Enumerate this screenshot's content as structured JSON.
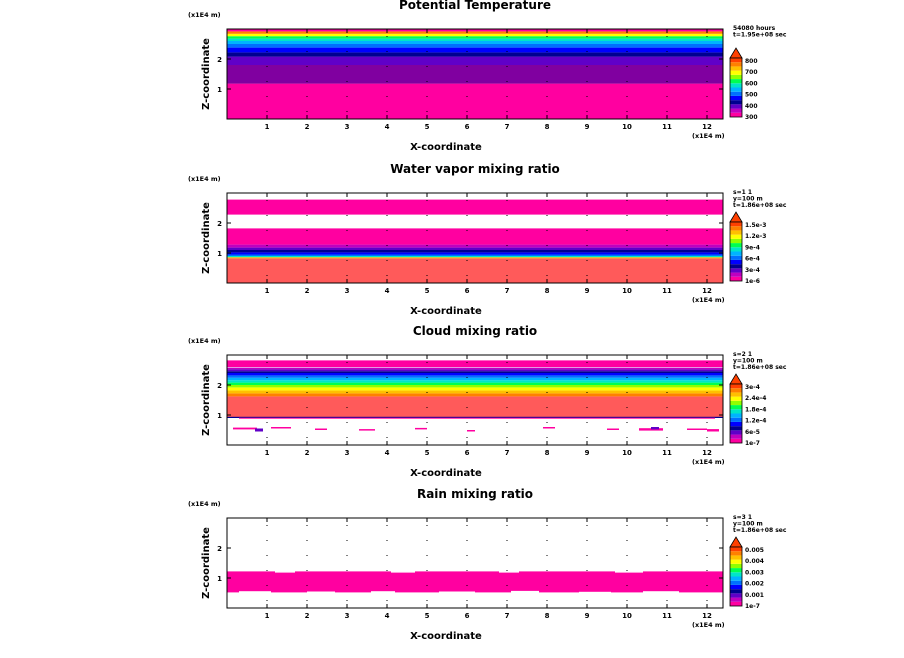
{
  "chart_data": [
    {
      "type": "heatmap",
      "title": "Potential Temperature",
      "xlabel": "X-coordinate",
      "ylabel": "Z-coordinate",
      "x_unit": "(x1E4 m)",
      "z_unit": "(x1E4 m)",
      "x_ticks": [
        "1",
        "2",
        "3",
        "4",
        "5",
        "6",
        "7",
        "8",
        "9",
        "10",
        "11",
        "12"
      ],
      "z_ticks": [
        "1",
        "2"
      ],
      "xlim": [
        0,
        12.4
      ],
      "zlim": [
        0,
        3.0
      ],
      "info": [
        "54080 hours",
        "t=1.95e+08 sec"
      ],
      "legend_labels": [
        "300",
        "400",
        "500",
        "600",
        "700",
        "800"
      ],
      "legend_colors": [
        "#ff00a0",
        "#c000c0",
        "#6000c8",
        "#000090",
        "#0000ff",
        "#0070ff",
        "#00b4ff",
        "#00e6c8",
        "#00ff50",
        "#90ff00",
        "#ffff00",
        "#ffc000",
        "#ff8000",
        "#ff4000"
      ],
      "bands": [
        {
          "z0": 0.0,
          "z1": 1.18,
          "color": "#ff00a0"
        },
        {
          "z0": 1.18,
          "z1": 1.8,
          "color": "#8000a0"
        },
        {
          "z0": 1.8,
          "z1": 2.08,
          "color": "#6000c8"
        },
        {
          "z0": 2.08,
          "z1": 2.22,
          "color": "#000090"
        },
        {
          "z0": 2.22,
          "z1": 2.38,
          "color": "#0000ff"
        },
        {
          "z0": 2.38,
          "z1": 2.5,
          "color": "#0070ff"
        },
        {
          "z0": 2.5,
          "z1": 2.6,
          "color": "#00b4ff"
        },
        {
          "z0": 2.6,
          "z1": 2.68,
          "color": "#00e6c8"
        },
        {
          "z0": 2.68,
          "z1": 2.76,
          "color": "#00ff50"
        },
        {
          "z0": 2.76,
          "z1": 2.84,
          "color": "#ffff00"
        },
        {
          "z0": 2.84,
          "z1": 2.92,
          "color": "#ff8000"
        },
        {
          "z0": 2.92,
          "z1": 3.0,
          "color": "#ff00a0"
        }
      ],
      "speckle": []
    },
    {
      "type": "heatmap",
      "title": "Water vapor mixing ratio",
      "xlabel": "X-coordinate",
      "ylabel": "Z-coordinate",
      "x_unit": "(x1E4 m)",
      "z_unit": "(x1E4 m)",
      "x_ticks": [
        "1",
        "2",
        "3",
        "4",
        "5",
        "6",
        "7",
        "8",
        "9",
        "10",
        "11",
        "12"
      ],
      "z_ticks": [
        "1",
        "2"
      ],
      "xlim": [
        0,
        12.4
      ],
      "zlim": [
        0,
        3.0
      ],
      "info": [
        "s=1 1",
        "y=100 m",
        "t=1.86e+08 sec"
      ],
      "legend_labels": [
        "1e-6",
        "3e-4",
        "6e-4",
        "9e-4",
        "1.2e-3",
        "1.5e-3"
      ],
      "legend_colors": [
        "#ff00a0",
        "#c000c0",
        "#6000c8",
        "#000090",
        "#0000ff",
        "#0070ff",
        "#00b4ff",
        "#00e6c8",
        "#00ff50",
        "#90ff00",
        "#ffff00",
        "#ffc000",
        "#ff8000",
        "#ff4000"
      ],
      "bands": [
        {
          "z0": 0.0,
          "z1": 0.82,
          "color": "#ff5a5a"
        },
        {
          "z0": 0.82,
          "z1": 0.86,
          "color": "#ffb400"
        },
        {
          "z0": 0.86,
          "z1": 0.9,
          "color": "#00e6c8"
        },
        {
          "z0": 0.9,
          "z1": 0.95,
          "color": "#0070ff"
        },
        {
          "z0": 0.95,
          "z1": 1.02,
          "color": "#0000ff"
        },
        {
          "z0": 1.02,
          "z1": 1.1,
          "color": "#000090"
        },
        {
          "z0": 1.1,
          "z1": 1.18,
          "color": "#6000c8"
        },
        {
          "z0": 1.18,
          "z1": 1.28,
          "color": "#c000c0"
        },
        {
          "z0": 1.28,
          "z1": 1.82,
          "color": "#ff00a0"
        },
        {
          "z0": 2.28,
          "z1": 2.78,
          "color": "#ff00a0"
        }
      ],
      "speckle": []
    },
    {
      "type": "heatmap",
      "title": "Cloud mixing ratio",
      "xlabel": "X-coordinate",
      "ylabel": "Z-coordinate",
      "x_unit": "(x1E4 m)",
      "z_unit": "(x1E4 m)",
      "x_ticks": [
        "1",
        "2",
        "3",
        "4",
        "5",
        "6",
        "7",
        "8",
        "9",
        "10",
        "11",
        "12"
      ],
      "z_ticks": [
        "1",
        "2"
      ],
      "xlim": [
        0,
        12.4
      ],
      "zlim": [
        0,
        3.0
      ],
      "info": [
        "s=2 1",
        "y=100 m",
        "t=1.86e+08 sec"
      ],
      "legend_labels": [
        "1e-7",
        "6e-5",
        "1.2e-4",
        "1.8e-4",
        "2.4e-4",
        "3e-4"
      ],
      "legend_colors": [
        "#ff00a0",
        "#c000c0",
        "#6000c8",
        "#000090",
        "#0000ff",
        "#0070ff",
        "#00b4ff",
        "#00e6c8",
        "#00ff50",
        "#90ff00",
        "#ffff00",
        "#ffc000",
        "#ff8000",
        "#ff4000"
      ],
      "bands": [
        {
          "z0": 0.92,
          "z1": 1.62,
          "color": "#ff5a5a"
        },
        {
          "z0": 1.62,
          "z1": 1.72,
          "color": "#ff8000"
        },
        {
          "z0": 1.72,
          "z1": 1.82,
          "color": "#ffc000"
        },
        {
          "z0": 1.82,
          "z1": 1.92,
          "color": "#ffff00"
        },
        {
          "z0": 1.92,
          "z1": 2.0,
          "color": "#90ff00"
        },
        {
          "z0": 2.0,
          "z1": 2.08,
          "color": "#00ff50"
        },
        {
          "z0": 2.08,
          "z1": 2.16,
          "color": "#00e6c8"
        },
        {
          "z0": 2.16,
          "z1": 2.24,
          "color": "#00b4ff"
        },
        {
          "z0": 2.24,
          "z1": 2.32,
          "color": "#0070ff"
        },
        {
          "z0": 2.32,
          "z1": 2.4,
          "color": "#0000ff"
        },
        {
          "z0": 2.4,
          "z1": 2.46,
          "color": "#000090"
        },
        {
          "z0": 2.46,
          "z1": 2.52,
          "color": "#6000c8"
        },
        {
          "z0": 2.52,
          "z1": 2.58,
          "color": "#c000c0"
        },
        {
          "z0": 2.6,
          "z1": 2.82,
          "color": "#ff00a0"
        },
        {
          "z0": 0.9,
          "z1": 0.94,
          "color": "#000090"
        }
      ],
      "speckle": [
        {
          "x": 0.15,
          "z": 0.52,
          "w": 0.6,
          "h": 0.06,
          "color": "#ff00a0"
        },
        {
          "x": 0.7,
          "z": 0.45,
          "w": 0.2,
          "h": 0.1,
          "color": "#6000c8"
        },
        {
          "x": 1.1,
          "z": 0.55,
          "w": 0.5,
          "h": 0.05,
          "color": "#ff00a0"
        },
        {
          "x": 2.2,
          "z": 0.5,
          "w": 0.3,
          "h": 0.05,
          "color": "#ff00a0"
        },
        {
          "x": 3.3,
          "z": 0.48,
          "w": 0.4,
          "h": 0.05,
          "color": "#ff00a0"
        },
        {
          "x": 4.7,
          "z": 0.52,
          "w": 0.3,
          "h": 0.05,
          "color": "#ff00a0"
        },
        {
          "x": 6.0,
          "z": 0.45,
          "w": 0.2,
          "h": 0.05,
          "color": "#ff00a0"
        },
        {
          "x": 7.9,
          "z": 0.55,
          "w": 0.3,
          "h": 0.05,
          "color": "#ff00a0"
        },
        {
          "x": 9.5,
          "z": 0.5,
          "w": 0.3,
          "h": 0.05,
          "color": "#ff00a0"
        },
        {
          "x": 10.3,
          "z": 0.48,
          "w": 0.6,
          "h": 0.08,
          "color": "#ff00a0"
        },
        {
          "x": 10.6,
          "z": 0.52,
          "w": 0.2,
          "h": 0.08,
          "color": "#6000c8"
        },
        {
          "x": 11.5,
          "z": 0.5,
          "w": 0.5,
          "h": 0.05,
          "color": "#ff00a0"
        },
        {
          "x": 12.0,
          "z": 0.45,
          "w": 0.3,
          "h": 0.08,
          "color": "#ff00a0"
        },
        {
          "x": 0.3,
          "z": 0.88,
          "w": 11.9,
          "h": 0.03,
          "color": "#ff00a0"
        }
      ]
    },
    {
      "type": "heatmap",
      "title": "Rain mixing ratio",
      "xlabel": "X-coordinate",
      "ylabel": "Z-coordinate",
      "x_unit": "(x1E4 m)",
      "z_unit": "(x1E4 m)",
      "x_ticks": [
        "1",
        "2",
        "3",
        "4",
        "5",
        "6",
        "7",
        "8",
        "9",
        "10",
        "11",
        "12"
      ],
      "z_ticks": [
        "1",
        "2"
      ],
      "xlim": [
        0,
        12.4
      ],
      "zlim": [
        0,
        3.0
      ],
      "info": [
        "s=3 1",
        "y=100 m",
        "t=1.86e+08 sec"
      ],
      "legend_labels": [
        "1e-7",
        "0.001",
        "0.002",
        "0.003",
        "0.004",
        "0.005"
      ],
      "legend_colors": [
        "#ff00a0",
        "#c000c0",
        "#6000c8",
        "#000090",
        "#0000ff",
        "#0070ff",
        "#00b4ff",
        "#00e6c8",
        "#00ff50",
        "#90ff00",
        "#ffff00",
        "#ffc000",
        "#ff8000",
        "#ff4000"
      ],
      "bands": [
        {
          "z0": 0.52,
          "z1": 1.22,
          "color": "#ff00a0"
        }
      ],
      "speckle": [
        {
          "x": 0.3,
          "z": 0.5,
          "w": 0.8,
          "h": 0.06,
          "color": "#ffffff"
        },
        {
          "x": 2.0,
          "z": 0.48,
          "w": 0.7,
          "h": 0.07,
          "color": "#ffffff"
        },
        {
          "x": 3.6,
          "z": 0.5,
          "w": 0.6,
          "h": 0.06,
          "color": "#ffffff"
        },
        {
          "x": 5.3,
          "z": 0.49,
          "w": 0.9,
          "h": 0.06,
          "color": "#ffffff"
        },
        {
          "x": 7.1,
          "z": 0.5,
          "w": 0.7,
          "h": 0.07,
          "color": "#ffffff"
        },
        {
          "x": 8.8,
          "z": 0.48,
          "w": 0.8,
          "h": 0.06,
          "color": "#ffffff"
        },
        {
          "x": 10.4,
          "z": 0.5,
          "w": 0.9,
          "h": 0.06,
          "color": "#ffffff"
        },
        {
          "x": 1.2,
          "z": 1.18,
          "w": 0.5,
          "h": 0.05,
          "color": "#ffffff"
        },
        {
          "x": 4.1,
          "z": 1.18,
          "w": 0.6,
          "h": 0.05,
          "color": "#ffffff"
        },
        {
          "x": 6.8,
          "z": 1.18,
          "w": 0.5,
          "h": 0.05,
          "color": "#ffffff"
        },
        {
          "x": 9.7,
          "z": 1.18,
          "w": 0.7,
          "h": 0.05,
          "color": "#ffffff"
        }
      ]
    }
  ]
}
